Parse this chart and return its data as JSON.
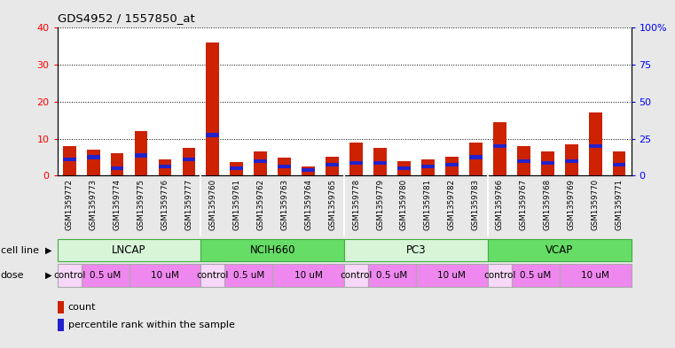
{
  "title": "GDS4952 / 1557850_at",
  "samples": [
    "GSM1359772",
    "GSM1359773",
    "GSM1359774",
    "GSM1359775",
    "GSM1359776",
    "GSM1359777",
    "GSM1359760",
    "GSM1359761",
    "GSM1359762",
    "GSM1359763",
    "GSM1359764",
    "GSM1359765",
    "GSM1359778",
    "GSM1359779",
    "GSM1359780",
    "GSM1359781",
    "GSM1359782",
    "GSM1359783",
    "GSM1359766",
    "GSM1359767",
    "GSM1359768",
    "GSM1359769",
    "GSM1359770",
    "GSM1359771"
  ],
  "count": [
    8,
    7,
    6,
    12,
    4.5,
    7.5,
    36,
    3.8,
    6.5,
    4.8,
    2.5,
    5.2,
    9,
    7.5,
    4,
    4.5,
    5.2,
    9,
    14.5,
    8,
    6.5,
    8.5,
    17,
    6.5
  ],
  "percentile": [
    4.5,
    5,
    2,
    5.5,
    2.5,
    4.5,
    11,
    2,
    4,
    2.5,
    1.5,
    3,
    3.5,
    3.5,
    2,
    2.5,
    3,
    5,
    8,
    4,
    3.5,
    4,
    8,
    3
  ],
  "cell_lines": [
    {
      "name": "LNCAP",
      "start": 0,
      "end": 6,
      "color": "#d8f5d8"
    },
    {
      "name": "NCIH660",
      "start": 6,
      "end": 12,
      "color": "#66dd66"
    },
    {
      "name": "PC3",
      "start": 12,
      "end": 18,
      "color": "#d8f5d8"
    },
    {
      "name": "VCAP",
      "start": 18,
      "end": 24,
      "color": "#66dd66"
    }
  ],
  "dose_groups": [
    {
      "label": "control",
      "start": 0,
      "end": 1,
      "color": "#f8d8f8"
    },
    {
      "label": "0.5 uM",
      "start": 1,
      "end": 3,
      "color": "#ee88ee"
    },
    {
      "label": "10 uM",
      "start": 3,
      "end": 6,
      "color": "#ee88ee"
    },
    {
      "label": "control",
      "start": 6,
      "end": 7,
      "color": "#f8d8f8"
    },
    {
      "label": "0.5 uM",
      "start": 7,
      "end": 9,
      "color": "#ee88ee"
    },
    {
      "label": "10 uM",
      "start": 9,
      "end": 12,
      "color": "#ee88ee"
    },
    {
      "label": "control",
      "start": 12,
      "end": 13,
      "color": "#f8d8f8"
    },
    {
      "label": "0.5 uM",
      "start": 13,
      "end": 15,
      "color": "#ee88ee"
    },
    {
      "label": "10 uM",
      "start": 15,
      "end": 18,
      "color": "#ee88ee"
    },
    {
      "label": "control",
      "start": 18,
      "end": 19,
      "color": "#f8d8f8"
    },
    {
      "label": "0.5 uM",
      "start": 19,
      "end": 21,
      "color": "#ee88ee"
    },
    {
      "label": "10 uM",
      "start": 21,
      "end": 24,
      "color": "#ee88ee"
    }
  ],
  "ylim_left": [
    0,
    40
  ],
  "ylim_right": [
    0,
    100
  ],
  "yticks_left": [
    0,
    10,
    20,
    30,
    40
  ],
  "yticks_right": [
    0,
    25,
    50,
    75,
    100
  ],
  "bar_color": "#cc2200",
  "percentile_color": "#2222cc",
  "bg_color": "#e8e8e8",
  "plot_bg": "#ffffff",
  "xtick_bg": "#cccccc"
}
